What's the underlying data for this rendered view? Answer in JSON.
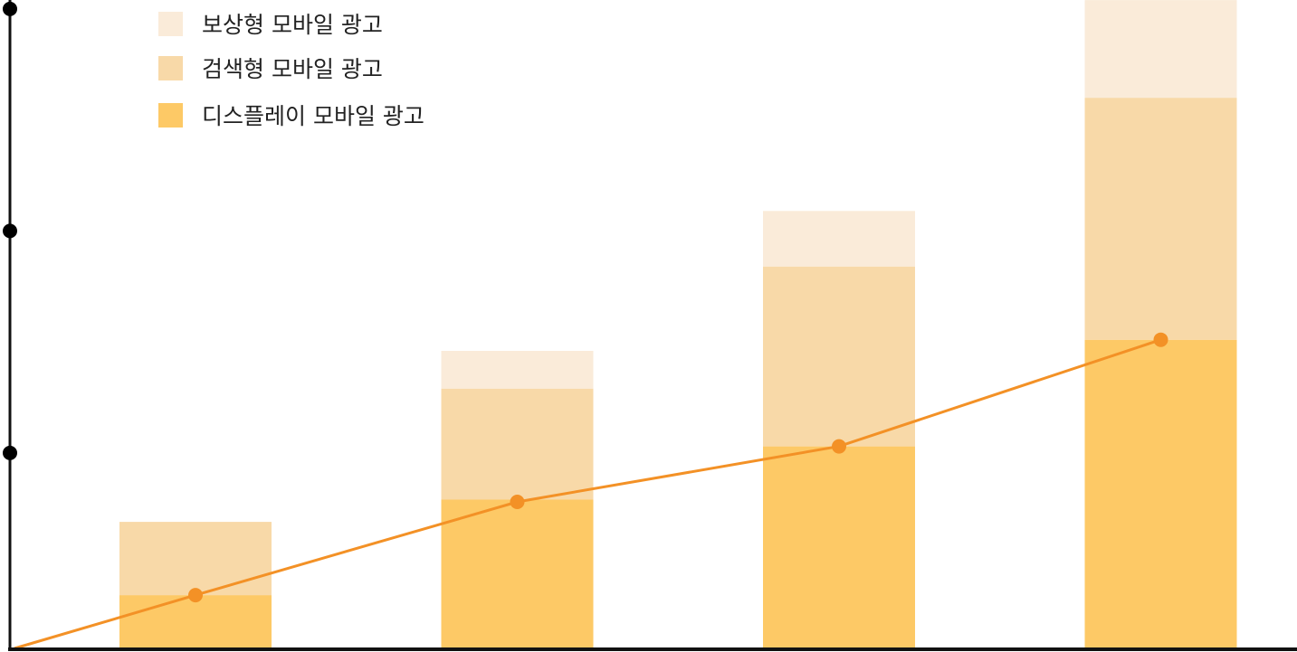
{
  "chart_data": {
    "type": "bar",
    "stacked": true,
    "categories": [
      "",
      "",
      "",
      ""
    ],
    "series": [
      {
        "name": "디스플레이 모바일 광고",
        "values": [
          24,
          67,
          91,
          139
        ],
        "color": "#fdc966"
      },
      {
        "name": "검색형 모바일 광고",
        "values": [
          33,
          50,
          81,
          109
        ],
        "color": "#f8d9a8"
      },
      {
        "name": "보상형 모바일 광고",
        "values": [
          0,
          17,
          25,
          44
        ],
        "color": "#faebd9"
      }
    ],
    "line": {
      "color": "#f39126",
      "points": [
        {
          "x": 0,
          "y": 0
        },
        {
          "x": 1,
          "y": 24
        },
        {
          "x": 2,
          "y": 66
        },
        {
          "x": 3,
          "y": 91
        },
        {
          "x": 4,
          "y": 139
        }
      ]
    },
    "ylim": [
      0,
      290
    ],
    "yticks": [
      0,
      88,
      188,
      288
    ],
    "xlabel": "",
    "ylabel": "",
    "title": "",
    "legend_position": "top-left",
    "grid": false
  }
}
